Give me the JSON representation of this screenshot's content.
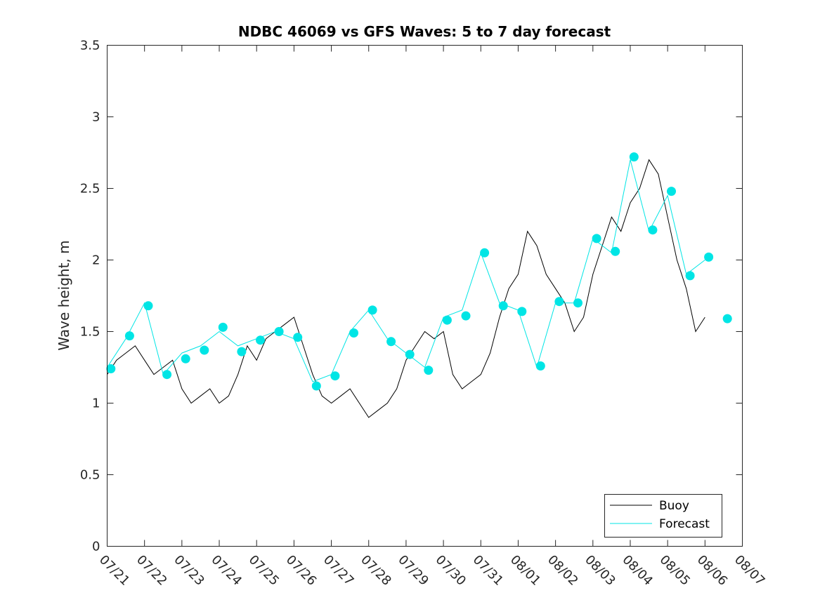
{
  "chart_data": {
    "type": "line",
    "title": "NDBC 46069 vs GFS Waves: 5 to 7 day forecast",
    "xlabel": "",
    "ylabel": "Wave height, m",
    "ylim": [
      0,
      3.5
    ],
    "xlim": [
      "07/21",
      "08/07"
    ],
    "yticks": [
      "0",
      "0.5",
      "1",
      "1.5",
      "2",
      "2.5",
      "3",
      "3.5"
    ],
    "xticks": [
      "07/21",
      "07/22",
      "07/23",
      "07/24",
      "07/25",
      "07/26",
      "07/27",
      "07/28",
      "07/29",
      "07/30",
      "07/31",
      "08/01",
      "08/02",
      "08/03",
      "08/04",
      "08/05",
      "08/06",
      "08/07"
    ],
    "grid": false,
    "legend": "bottom-right",
    "colors": {
      "buoy": "#000000",
      "forecast": "#00e5e5"
    },
    "series": [
      {
        "name": "Buoy",
        "x_day_offset": [
          0.0,
          0.25,
          0.5,
          0.75,
          1.0,
          1.25,
          1.5,
          1.75,
          2.0,
          2.25,
          2.5,
          2.75,
          3.0,
          3.25,
          3.5,
          3.75,
          4.0,
          4.25,
          4.5,
          4.75,
          5.0,
          5.25,
          5.5,
          5.75,
          6.0,
          6.25,
          6.5,
          6.75,
          7.0,
          7.25,
          7.5,
          7.75,
          8.0,
          8.25,
          8.5,
          8.75,
          9.0,
          9.25,
          9.5,
          9.75,
          10.0,
          10.25,
          10.5,
          10.75,
          11.0,
          11.25,
          11.5,
          11.75,
          12.0,
          12.25,
          12.5,
          12.75,
          13.0,
          13.25,
          13.5,
          13.75,
          14.0,
          14.25,
          14.5,
          14.75,
          15.0,
          15.25,
          15.5,
          15.75,
          16.0
        ],
        "values": [
          1.2,
          1.3,
          1.35,
          1.4,
          1.3,
          1.2,
          1.25,
          1.3,
          1.1,
          1.0,
          1.05,
          1.1,
          1.0,
          1.05,
          1.2,
          1.4,
          1.3,
          1.45,
          1.5,
          1.55,
          1.6,
          1.4,
          1.2,
          1.05,
          1.0,
          1.05,
          1.1,
          1.0,
          0.9,
          0.95,
          1.0,
          1.1,
          1.3,
          1.4,
          1.5,
          1.45,
          1.5,
          1.2,
          1.1,
          1.15,
          1.2,
          1.35,
          1.6,
          1.8,
          1.9,
          2.2,
          2.1,
          1.9,
          1.8,
          1.7,
          1.5,
          1.6,
          1.9,
          2.1,
          2.3,
          2.2,
          2.4,
          2.5,
          2.7,
          2.6,
          2.3,
          2.0,
          1.8,
          1.5,
          1.6
        ]
      },
      {
        "name": "Forecast",
        "x_day_offset": [
          0.0,
          0.5,
          1.0,
          1.5,
          2.0,
          2.5,
          3.0,
          3.5,
          4.0,
          4.5,
          5.0,
          5.5,
          6.0,
          6.5,
          7.0,
          7.5,
          8.0,
          8.5,
          9.0,
          9.5,
          10.0,
          10.5,
          11.0,
          11.5,
          12.0,
          12.5,
          13.0,
          13.5,
          14.0,
          14.5,
          15.0,
          15.5,
          16.0
        ],
        "values": [
          1.25,
          1.45,
          1.7,
          1.2,
          1.35,
          1.4,
          1.5,
          1.4,
          1.45,
          1.5,
          1.45,
          1.15,
          1.2,
          1.5,
          1.65,
          1.45,
          1.35,
          1.25,
          1.6,
          1.65,
          2.05,
          1.7,
          1.65,
          1.25,
          1.7,
          1.7,
          2.15,
          2.05,
          2.7,
          2.2,
          2.45,
          1.9,
          2.0
        ]
      }
    ],
    "forecast_markers": [
      {
        "x_day_offset": 0.1,
        "value": 1.24
      },
      {
        "x_day_offset": 0.6,
        "value": 1.47
      },
      {
        "x_day_offset": 1.1,
        "value": 1.68
      },
      {
        "x_day_offset": 1.6,
        "value": 1.2
      },
      {
        "x_day_offset": 2.1,
        "value": 1.31
      },
      {
        "x_day_offset": 2.6,
        "value": 1.37
      },
      {
        "x_day_offset": 3.1,
        "value": 1.53
      },
      {
        "x_day_offset": 3.6,
        "value": 1.36
      },
      {
        "x_day_offset": 4.1,
        "value": 1.44
      },
      {
        "x_day_offset": 4.6,
        "value": 1.5
      },
      {
        "x_day_offset": 5.1,
        "value": 1.46
      },
      {
        "x_day_offset": 5.6,
        "value": 1.12
      },
      {
        "x_day_offset": 6.1,
        "value": 1.19
      },
      {
        "x_day_offset": 6.6,
        "value": 1.49
      },
      {
        "x_day_offset": 7.1,
        "value": 1.65
      },
      {
        "x_day_offset": 7.6,
        "value": 1.43
      },
      {
        "x_day_offset": 8.1,
        "value": 1.34
      },
      {
        "x_day_offset": 8.6,
        "value": 1.23
      },
      {
        "x_day_offset": 9.1,
        "value": 1.58
      },
      {
        "x_day_offset": 9.6,
        "value": 1.61
      },
      {
        "x_day_offset": 10.1,
        "value": 2.05
      },
      {
        "x_day_offset": 10.6,
        "value": 1.68
      },
      {
        "x_day_offset": 11.1,
        "value": 1.64
      },
      {
        "x_day_offset": 11.6,
        "value": 1.26
      },
      {
        "x_day_offset": 12.1,
        "value": 1.71
      },
      {
        "x_day_offset": 12.6,
        "value": 1.7
      },
      {
        "x_day_offset": 13.1,
        "value": 2.15
      },
      {
        "x_day_offset": 13.6,
        "value": 2.06
      },
      {
        "x_day_offset": 14.1,
        "value": 2.72
      },
      {
        "x_day_offset": 14.6,
        "value": 2.21
      },
      {
        "x_day_offset": 15.1,
        "value": 2.48
      },
      {
        "x_day_offset": 15.6,
        "value": 1.89
      },
      {
        "x_day_offset": 16.1,
        "value": 2.02
      },
      {
        "x_day_offset": 16.6,
        "value": 1.59
      }
    ]
  }
}
